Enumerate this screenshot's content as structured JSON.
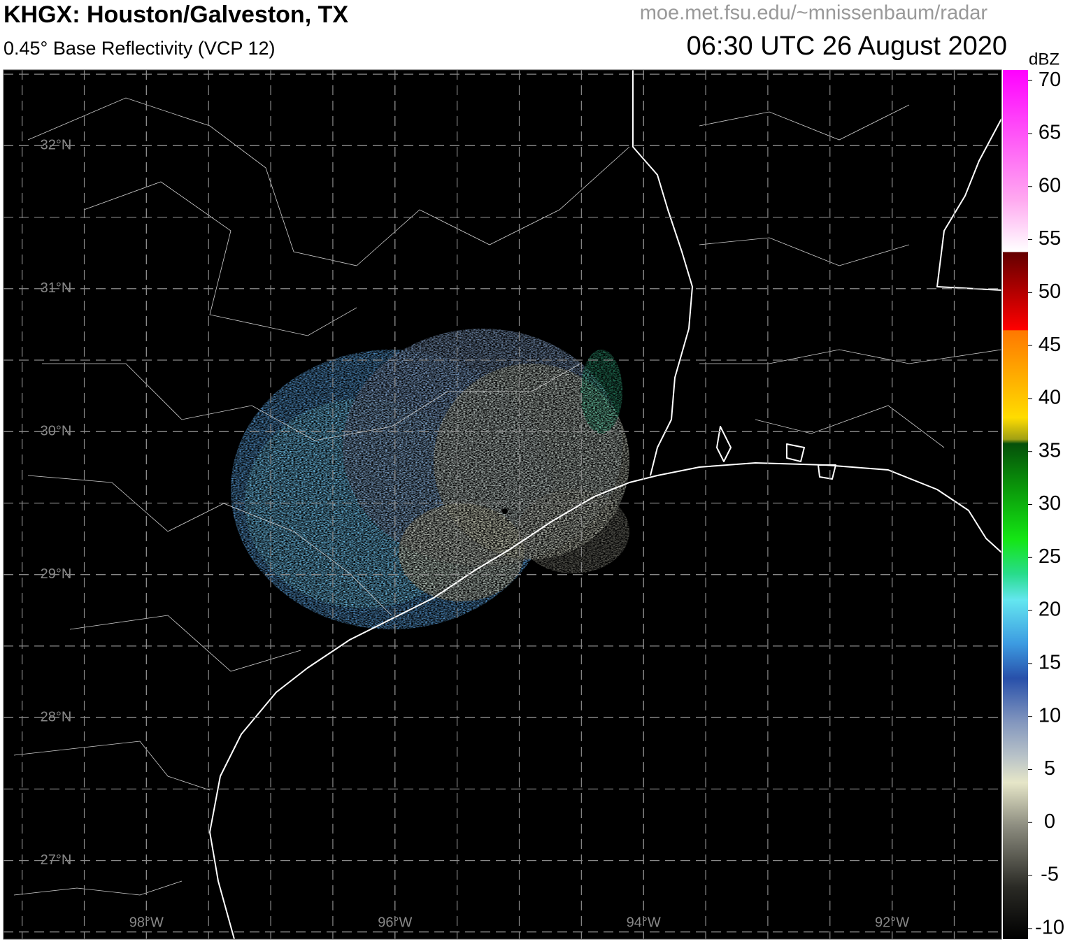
{
  "header": {
    "title": "KHGX: Houston/Galveston, TX",
    "subtitle": "0.45° Base Reflectivity (VCP 12)",
    "source": "moe.met.fsu.edu/~mnissenbaum/radar",
    "timestamp": "06:30 UTC 26 August 2020"
  },
  "map": {
    "lat_range": [
      26.45,
      32.53
    ],
    "lon_range": [
      -99.15,
      -91.12
    ],
    "grid_spacing": 0.5,
    "lat_ticks": [
      {
        "value": 32,
        "label": "32°N"
      },
      {
        "value": 31,
        "label": "31°N"
      },
      {
        "value": 30,
        "label": "30°N"
      },
      {
        "value": 29,
        "label": "29°N"
      },
      {
        "value": 28,
        "label": "28°N"
      },
      {
        "value": 27,
        "label": "27°N"
      }
    ],
    "lon_ticks": [
      {
        "value": -98,
        "label": "98°W"
      },
      {
        "value": -96,
        "label": "96°W"
      },
      {
        "value": -94,
        "label": "94°W"
      },
      {
        "value": -92,
        "label": "92°W"
      }
    ]
  },
  "colorbar": {
    "label": "dBZ",
    "range": [
      -11,
      71
    ],
    "ticks": [
      70,
      65,
      60,
      55,
      50,
      45,
      40,
      35,
      30,
      25,
      20,
      15,
      10,
      5,
      0,
      -5,
      -10
    ]
  }
}
